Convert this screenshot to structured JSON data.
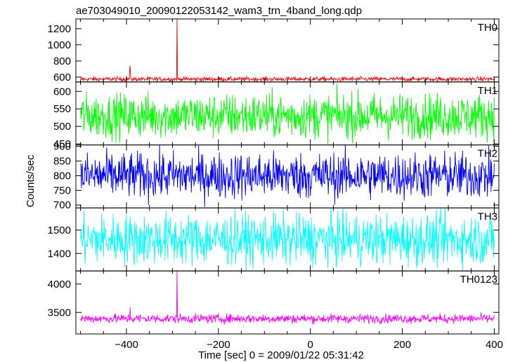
{
  "chart_data": {
    "type": "line",
    "title": "ae703049010_20090122053142_wam3_trn_4band_long.qdp",
    "xlabel": "Time [sec] 0 = 2009/01/22 05:31:42",
    "ylabel": "Counts/sec",
    "xlim": [
      -510,
      410
    ],
    "x_ticks": [
      -400,
      -200,
      0,
      200,
      400
    ],
    "x_tick_labels": [
      "−400",
      "−200",
      "0",
      "200",
      "400"
    ],
    "grid": false,
    "data_x_range": [
      -500,
      400
    ],
    "panels": [
      {
        "name": "TH0",
        "color": "#ff0000",
        "ylim": [
          540,
          1320
        ],
        "y_ticks": [
          600,
          800,
          1000,
          1200
        ],
        "baseline": 575,
        "noise": 14,
        "spikes": [
          [
            -290,
            1320
          ],
          [
            -392,
            742
          ],
          [
            -393,
            690
          ]
        ]
      },
      {
        "name": "TH1",
        "color": "#00ff00",
        "ylim": [
          447,
          627
        ],
        "y_ticks": [
          450,
          500,
          550,
          600
        ],
        "baseline": 530,
        "noise": 32,
        "spikes": []
      },
      {
        "name": "TH2",
        "color": "#0000ff",
        "ylim": [
          690,
          905
        ],
        "y_ticks": [
          700,
          750,
          800,
          850,
          900
        ],
        "baseline": 800,
        "noise": 40,
        "spikes": []
      },
      {
        "name": "TH3",
        "color": "#00ffff",
        "ylim": [
          1325,
          1595
        ],
        "y_ticks": [
          1400,
          1500
        ],
        "baseline": 1460,
        "noise": 55,
        "spikes": []
      },
      {
        "name": "TH0123",
        "color": "#ff00ff",
        "ylim": [
          3120,
          4230
        ],
        "y_ticks": [
          3500,
          4000
        ],
        "baseline": 3390,
        "noise": 40,
        "spikes": [
          [
            -290,
            4230
          ],
          [
            -392,
            3590
          ]
        ]
      }
    ]
  }
}
